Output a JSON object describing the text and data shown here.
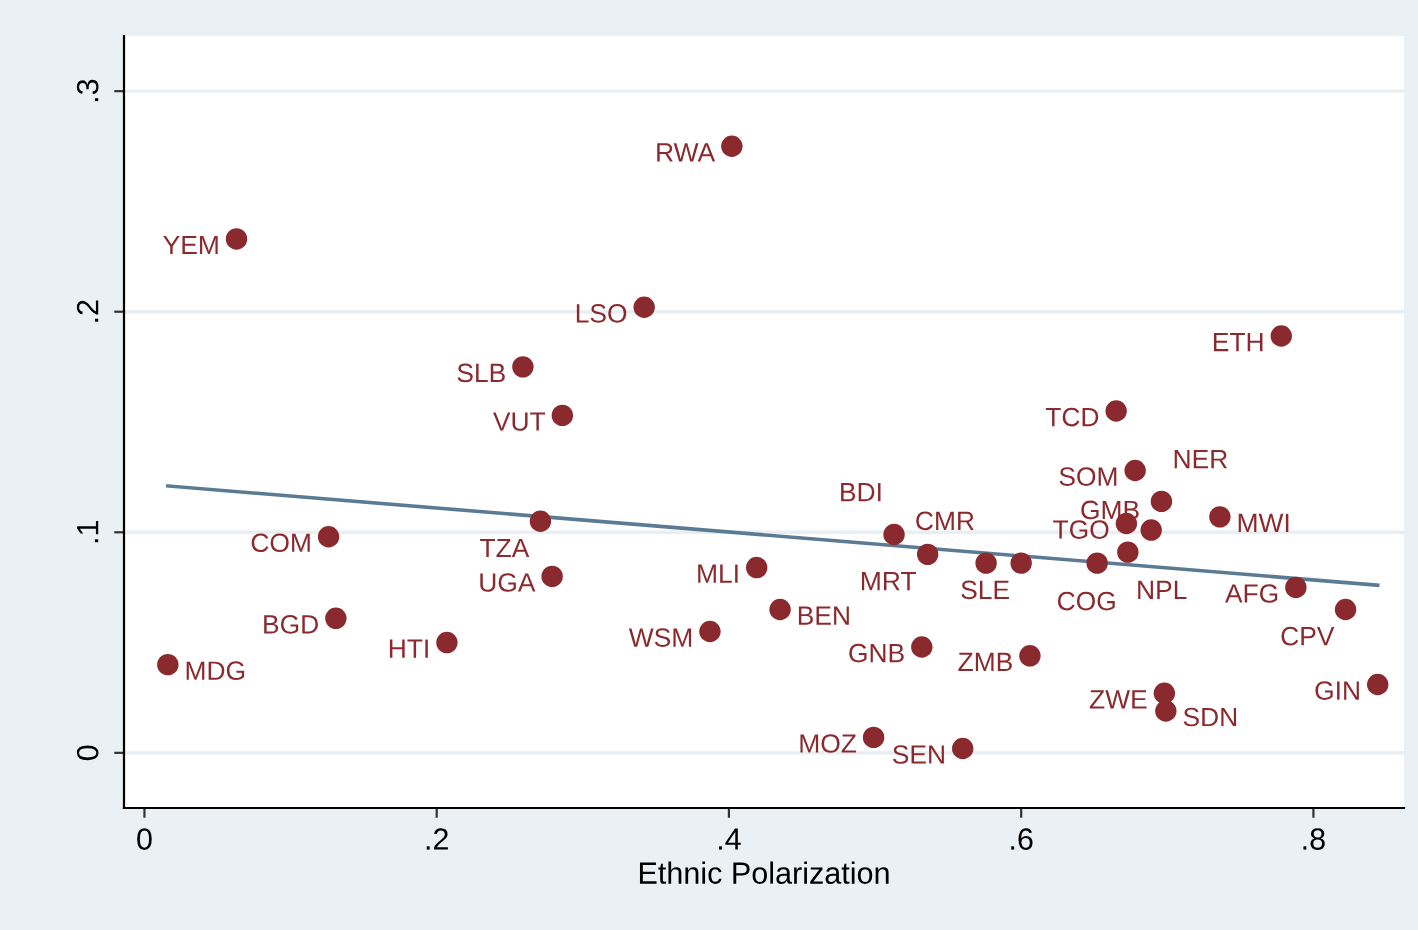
{
  "chart_data": {
    "type": "scatter",
    "xlabel": "Ethnic Polarization",
    "xlim": [
      -0.014,
      0.862
    ],
    "ylim": [
      -0.025,
      0.325
    ],
    "xticks": [
      {
        "value": 0,
        "label": "0"
      },
      {
        "value": 0.2,
        "label": ".2"
      },
      {
        "value": 0.4,
        "label": ".4"
      },
      {
        "value": 0.6,
        "label": ".6"
      },
      {
        "value": 0.8,
        "label": ".8"
      }
    ],
    "yticks": [
      {
        "value": 0,
        "label": "0"
      },
      {
        "value": 0.1,
        "label": ".1"
      },
      {
        "value": 0.2,
        "label": ".2"
      },
      {
        "value": 0.3,
        "label": ".3"
      }
    ],
    "grid": "y",
    "legend": false,
    "marker": "circle",
    "series": [
      {
        "type": "scatter",
        "color": "#8b2a2e",
        "x": [
          0.402,
          0.063,
          0.342,
          0.259,
          0.286,
          0.778,
          0.665,
          0.678,
          0.696,
          0.736,
          0.672,
          0.689,
          0.673,
          0.652,
          0.6,
          0.576,
          0.536,
          0.513,
          0.788,
          0.822,
          0.844,
          0.606,
          0.532,
          0.698,
          0.699,
          0.56,
          0.499,
          0.419,
          0.435,
          0.387,
          0.271,
          0.279,
          0.126,
          0.131,
          0.207,
          0.016
        ],
        "values": [
          0.275,
          0.233,
          0.202,
          0.175,
          0.153,
          0.189,
          0.155,
          0.128,
          0.114,
          0.107,
          0.104,
          0.101,
          0.091,
          0.086,
          0.086,
          0.086,
          0.09,
          0.099,
          0.075,
          0.065,
          0.031,
          0.044,
          0.048,
          0.027,
          0.019,
          0.002,
          0.007,
          0.084,
          0.065,
          0.055,
          0.105,
          0.08,
          0.098,
          0.061,
          0.05,
          0.04
        ]
      },
      {
        "type": "line",
        "marker": "none",
        "color": "#5b7a93",
        "x": [
          0.016,
          0.844
        ],
        "values": [
          0.121,
          0.076
        ]
      }
    ],
    "annotations": [
      {
        "text": "RWA",
        "x": 0.402,
        "y": 0.275
      },
      {
        "text": "YEM",
        "x": 0.063,
        "y": 0.233
      },
      {
        "text": "LSO",
        "x": 0.342,
        "y": 0.202
      },
      {
        "text": "SLB",
        "x": 0.259,
        "y": 0.175
      },
      {
        "text": "VUT",
        "x": 0.286,
        "y": 0.153
      },
      {
        "text": "ETH",
        "x": 0.778,
        "y": 0.189
      },
      {
        "text": "TCD",
        "x": 0.665,
        "y": 0.155
      },
      {
        "text": "SOM",
        "x": 0.678,
        "y": 0.128
      },
      {
        "text": "NER",
        "x": 0.696,
        "y": 0.114
      },
      {
        "text": "MWI",
        "x": 0.736,
        "y": 0.107
      },
      {
        "text": "TGO",
        "x": 0.672,
        "y": 0.104
      },
      {
        "text": "GMB",
        "x": 0.689,
        "y": 0.101
      },
      {
        "text": "COG",
        "x": 0.673,
        "y": 0.091
      },
      {
        "text": "NPL",
        "x": 0.652,
        "y": 0.086
      },
      {
        "text": "SLE",
        "x": 0.6,
        "y": 0.086
      },
      {
        "text": "CMR",
        "x": 0.576,
        "y": 0.086
      },
      {
        "text": "MRT",
        "x": 0.536,
        "y": 0.09
      },
      {
        "text": "BDI",
        "x": 0.513,
        "y": 0.099
      },
      {
        "text": "AFG",
        "x": 0.788,
        "y": 0.075
      },
      {
        "text": "CPV",
        "x": 0.822,
        "y": 0.065
      },
      {
        "text": "GIN",
        "x": 0.844,
        "y": 0.031
      },
      {
        "text": "ZMB",
        "x": 0.606,
        "y": 0.044
      },
      {
        "text": "GNB",
        "x": 0.532,
        "y": 0.048
      },
      {
        "text": "ZWE",
        "x": 0.698,
        "y": 0.027
      },
      {
        "text": "SDN",
        "x": 0.699,
        "y": 0.019
      },
      {
        "text": "SEN",
        "x": 0.56,
        "y": 0.002
      },
      {
        "text": "MOZ",
        "x": 0.499,
        "y": 0.007
      },
      {
        "text": "MLI",
        "x": 0.419,
        "y": 0.084
      },
      {
        "text": "BEN",
        "x": 0.435,
        "y": 0.065
      },
      {
        "text": "WSM",
        "x": 0.387,
        "y": 0.055
      },
      {
        "text": "TZA",
        "x": 0.271,
        "y": 0.105
      },
      {
        "text": "UGA",
        "x": 0.279,
        "y": 0.08
      },
      {
        "text": "COM",
        "x": 0.126,
        "y": 0.098
      },
      {
        "text": "BGD",
        "x": 0.131,
        "y": 0.061
      },
      {
        "text": "HTI",
        "x": 0.207,
        "y": 0.05
      },
      {
        "text": "MDG",
        "x": 0.016,
        "y": 0.04
      }
    ]
  }
}
